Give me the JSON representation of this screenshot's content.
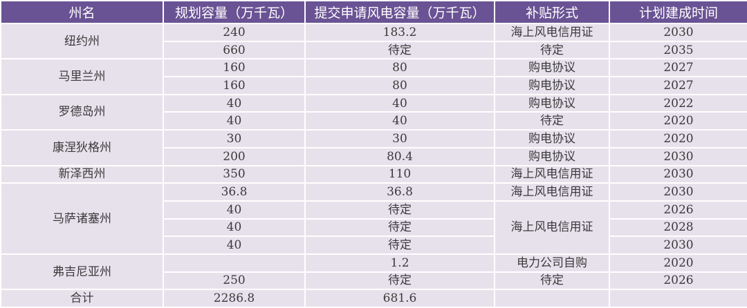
{
  "header": [
    "州名",
    "规划容量（万千瓦）",
    "提交申请风电容量（万千瓦）",
    "补贴形式",
    "计划建成时间"
  ],
  "states": [
    "纽约州",
    "马里兰州",
    "罗德岛州",
    "康涅狄格州",
    "新泽西州",
    "马萨诸塞州",
    "弗吉尼亚州",
    "合计"
  ],
  "rows": [
    {
      "capacity": "240",
      "applied": "183.2",
      "subsidy": "海上风电信用证",
      "year": "2030"
    },
    {
      "capacity": "660",
      "applied": "待定",
      "subsidy": "待定",
      "year": "2035"
    },
    {
      "capacity": "160",
      "applied": "80",
      "subsidy": "购电协议",
      "year": "2027"
    },
    {
      "capacity": "160",
      "applied": "80",
      "subsidy": "购电协议",
      "year": "2027"
    },
    {
      "capacity": "40",
      "applied": "40",
      "subsidy": "购电协议",
      "year": "2022"
    },
    {
      "capacity": "40",
      "applied": "40",
      "subsidy": "待定",
      "year": "2020"
    },
    {
      "capacity": "30",
      "applied": "30",
      "subsidy": "购电协议",
      "year": "2020"
    },
    {
      "capacity": "200",
      "applied": "80.4",
      "subsidy": "购电协议",
      "year": "2030"
    },
    {
      "capacity": "350",
      "applied": "110",
      "subsidy": "海上风电信用证",
      "year": "2030"
    },
    {
      "capacity": "36.8",
      "applied": "36.8",
      "subsidy": "海上风电信用证",
      "year": "2030"
    },
    {
      "capacity": "40",
      "applied": "待定",
      "subsidy": "海上风电信用证",
      "year": "2026"
    },
    {
      "capacity": "40",
      "applied": "待定",
      "year": "2028"
    },
    {
      "capacity": "40",
      "applied": "待定",
      "year": "2030"
    },
    {
      "capacity": "",
      "applied": "1.2",
      "subsidy": "电力公司自购",
      "year": "2020"
    },
    {
      "capacity": "250",
      "applied": "待定",
      "subsidy": "待定",
      "year": "2026"
    },
    {
      "capacity": "2286.8",
      "applied": "681.6",
      "subsidy": "",
      "year": ""
    }
  ]
}
